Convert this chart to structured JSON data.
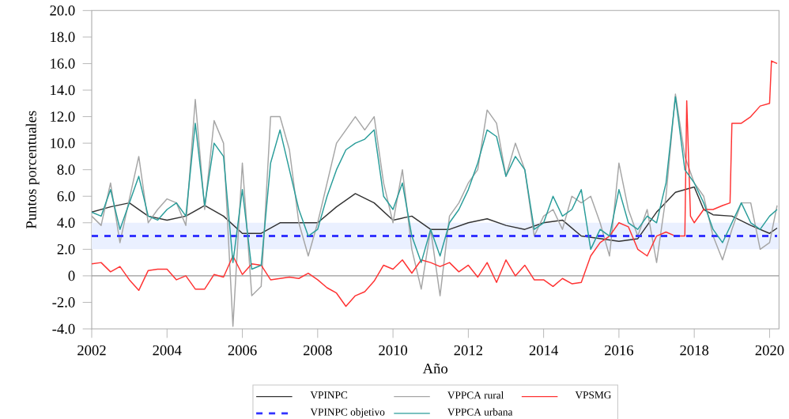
{
  "chart_data": {
    "type": "line",
    "xlabel": "Año",
    "ylabel": "Puntos porcentuales",
    "xlim": [
      2002,
      2020.25
    ],
    "xticks": [
      2002,
      2004,
      2006,
      2008,
      2010,
      2012,
      2014,
      2016,
      2018,
      2020
    ],
    "ylim": [
      -4,
      20
    ],
    "yticks": [
      {
        "value": -4,
        "label": "-4.0"
      },
      {
        "value": -2,
        "label": "-2.0"
      },
      0,
      {
        "value": 2,
        "label": "2.0"
      },
      {
        "value": 4,
        "label": "4.0"
      },
      {
        "value": 6,
        "label": "6.0"
      },
      {
        "value": 8,
        "label": "8.0"
      },
      {
        "value": 10,
        "label": "10.0"
      },
      {
        "value": 12,
        "label": "12.0"
      },
      {
        "value": 14,
        "label": "14.0"
      },
      {
        "value": 16,
        "label": "16.0"
      },
      {
        "value": 18,
        "label": "18.0"
      },
      {
        "value": 20,
        "label": "20.0"
      }
    ],
    "legend": "bottom",
    "grid": false,
    "marker": "none",
    "ref_lines": [
      {
        "axis": "y",
        "value": 0,
        "color": "#999999"
      }
    ],
    "bands": [
      {
        "axis": "y",
        "from": 2,
        "to": 4,
        "color": "#eaf0ff"
      }
    ],
    "series": [
      {
        "name": "VPINPC",
        "color": "#333333",
        "x": [
          2002,
          2002.5,
          2003,
          2003.5,
          2004,
          2004.5,
          2005,
          2005.5,
          2006,
          2006.5,
          2007,
          2007.5,
          2008,
          2008.5,
          2009,
          2009.5,
          2010,
          2010.5,
          2011,
          2011.5,
          2012,
          2012.5,
          2013,
          2013.5,
          2014,
          2014.5,
          2015,
          2015.5,
          2016,
          2016.5,
          2017,
          2017.5,
          2018,
          2018.25,
          2018.5,
          2019,
          2019.5,
          2020,
          2020.2
        ],
        "values": [
          4.8,
          5.2,
          5.5,
          4.5,
          4.2,
          4.5,
          5.3,
          4.5,
          3.2,
          3.2,
          4.0,
          4.0,
          4.0,
          5.2,
          6.2,
          5.5,
          4.2,
          4.5,
          3.5,
          3.5,
          4.0,
          4.3,
          3.8,
          3.5,
          4.0,
          4.2,
          3.0,
          2.8,
          2.6,
          2.8,
          4.8,
          6.3,
          6.7,
          5.0,
          4.6,
          4.5,
          3.8,
          3.2,
          3.6
        ]
      },
      {
        "name": "VPPCA rural",
        "color": "#a6a6a6",
        "x": [
          2002,
          2002.25,
          2002.5,
          2002.75,
          2003,
          2003.25,
          2003.5,
          2003.75,
          2004,
          2004.25,
          2004.5,
          2004.75,
          2005,
          2005.25,
          2005.5,
          2005.75,
          2006,
          2006.25,
          2006.5,
          2006.75,
          2007,
          2007.25,
          2007.5,
          2007.75,
          2008,
          2008.25,
          2008.5,
          2008.75,
          2009,
          2009.25,
          2009.5,
          2009.75,
          2010,
          2010.25,
          2010.5,
          2010.75,
          2011,
          2011.25,
          2011.5,
          2011.75,
          2012,
          2012.25,
          2012.5,
          2012.75,
          2013,
          2013.25,
          2013.5,
          2013.75,
          2014,
          2014.25,
          2014.5,
          2014.75,
          2015,
          2015.25,
          2015.5,
          2015.75,
          2016,
          2016.25,
          2016.5,
          2016.75,
          2017,
          2017.25,
          2017.5,
          2017.75,
          2018,
          2018.25,
          2018.5,
          2018.75,
          2019,
          2019.25,
          2019.5,
          2019.75,
          2020,
          2020.2
        ],
        "values": [
          4.5,
          3.8,
          7.0,
          2.5,
          5.8,
          9.0,
          4.0,
          5.0,
          5.8,
          5.5,
          3.8,
          13.3,
          5.0,
          11.7,
          10.0,
          -3.8,
          8.5,
          -1.5,
          -0.8,
          12.0,
          12.0,
          9.5,
          4.0,
          1.5,
          4.0,
          7.0,
          10.0,
          11.0,
          12.0,
          11.0,
          12.0,
          7.0,
          4.0,
          8.0,
          2.0,
          -1.0,
          3.5,
          -1.5,
          4.5,
          5.5,
          7.0,
          8.0,
          12.5,
          11.5,
          7.5,
          10.0,
          8.0,
          3.0,
          4.5,
          5.0,
          3.5,
          6.0,
          5.5,
          6.0,
          4.0,
          1.5,
          8.5,
          5.0,
          3.0,
          5.0,
          1.0,
          6.0,
          13.7,
          9.0,
          7.0,
          6.0,
          3.0,
          1.2,
          3.5,
          5.5,
          5.5,
          2.0,
          2.5,
          5.3
        ]
      },
      {
        "name": "VPSMG",
        "color": "#ff3333",
        "x": [
          2002,
          2002.25,
          2002.5,
          2002.75,
          2003,
          2003.25,
          2003.5,
          2003.75,
          2004,
          2004.25,
          2004.5,
          2004.75,
          2005,
          2005.25,
          2005.5,
          2005.75,
          2006,
          2006.25,
          2006.5,
          2006.75,
          2007,
          2007.25,
          2007.5,
          2007.75,
          2008,
          2008.25,
          2008.5,
          2008.75,
          2009,
          2009.25,
          2009.5,
          2009.75,
          2010,
          2010.25,
          2010.5,
          2010.75,
          2011,
          2011.25,
          2011.5,
          2011.75,
          2012,
          2012.25,
          2012.5,
          2012.75,
          2013,
          2013.25,
          2013.5,
          2013.75,
          2014,
          2014.25,
          2014.5,
          2014.75,
          2015,
          2015.25,
          2015.5,
          2015.75,
          2016,
          2016.25,
          2016.5,
          2016.75,
          2017,
          2017.25,
          2017.5,
          2017.75,
          2017.8,
          2017.9,
          2018,
          2018.25,
          2018.5,
          2018.75,
          2018.95,
          2019,
          2019.25,
          2019.5,
          2019.75,
          2020,
          2020.05,
          2020.2
        ],
        "values": [
          0.9,
          1.0,
          0.3,
          0.7,
          -0.3,
          -1.1,
          0.4,
          0.5,
          0.5,
          -0.3,
          0.0,
          -1.0,
          -1.0,
          0.1,
          -0.1,
          1.5,
          0.1,
          0.9,
          0.8,
          -0.3,
          -0.2,
          -0.1,
          -0.2,
          0.2,
          -0.3,
          -0.9,
          -1.3,
          -2.3,
          -1.5,
          -1.2,
          -0.4,
          0.8,
          0.5,
          1.2,
          0.2,
          1.2,
          1.0,
          0.7,
          1.0,
          0.3,
          0.8,
          -0.1,
          1.0,
          -0.5,
          1.2,
          0.0,
          0.8,
          -0.3,
          -0.3,
          -0.8,
          -0.2,
          -0.6,
          -0.5,
          1.5,
          2.5,
          3.0,
          4.0,
          3.7,
          2.0,
          1.5,
          3.0,
          3.3,
          3.0,
          3.0,
          13.2,
          4.5,
          4.0,
          5.0,
          5.0,
          5.3,
          5.5,
          11.5,
          11.5,
          12.0,
          12.8,
          13.0,
          16.2,
          16.0
        ]
      },
      {
        "name": "VPINPC objetivo",
        "color": "#3333ff",
        "line_style": "dashed",
        "x": [
          2002,
          2020.2
        ],
        "values": [
          3,
          3
        ]
      },
      {
        "name": "VPPCA urbana",
        "color": "#2a9d9a",
        "x": [
          2002,
          2002.25,
          2002.5,
          2002.75,
          2003,
          2003.25,
          2003.5,
          2003.75,
          2004,
          2004.25,
          2004.5,
          2004.75,
          2005,
          2005.25,
          2005.5,
          2005.75,
          2006,
          2006.25,
          2006.5,
          2006.75,
          2007,
          2007.25,
          2007.5,
          2007.75,
          2008,
          2008.25,
          2008.5,
          2008.75,
          2009,
          2009.25,
          2009.5,
          2009.75,
          2010,
          2010.25,
          2010.5,
          2010.75,
          2011,
          2011.25,
          2011.5,
          2011.75,
          2012,
          2012.25,
          2012.5,
          2012.75,
          2013,
          2013.25,
          2013.5,
          2013.75,
          2014,
          2014.25,
          2014.5,
          2014.75,
          2015,
          2015.25,
          2015.5,
          2015.75,
          2016,
          2016.25,
          2016.5,
          2016.75,
          2017,
          2017.25,
          2017.5,
          2017.75,
          2018,
          2018.25,
          2018.5,
          2018.75,
          2019,
          2019.25,
          2019.5,
          2019.75,
          2020,
          2020.2
        ],
        "values": [
          4.8,
          4.5,
          6.5,
          3.5,
          5.5,
          7.5,
          4.5,
          4.2,
          5.0,
          5.5,
          4.5,
          11.5,
          5.3,
          10.0,
          9.0,
          1.0,
          6.5,
          0.5,
          0.8,
          8.5,
          11.0,
          8.0,
          5.0,
          3.0,
          3.5,
          6.0,
          8.0,
          9.5,
          10.0,
          10.3,
          11.0,
          6.0,
          5.0,
          7.0,
          3.0,
          1.0,
          3.5,
          1.5,
          4.0,
          5.0,
          6.5,
          8.5,
          11.0,
          10.5,
          7.5,
          9.0,
          8.0,
          3.5,
          4.0,
          6.0,
          4.5,
          5.0,
          6.5,
          2.0,
          3.5,
          3.0,
          6.5,
          4.0,
          3.5,
          4.5,
          4.0,
          7.0,
          13.5,
          8.0,
          7.0,
          5.5,
          3.5,
          2.5,
          4.0,
          5.5,
          4.0,
          3.5,
          4.5,
          5.0
        ]
      }
    ]
  }
}
